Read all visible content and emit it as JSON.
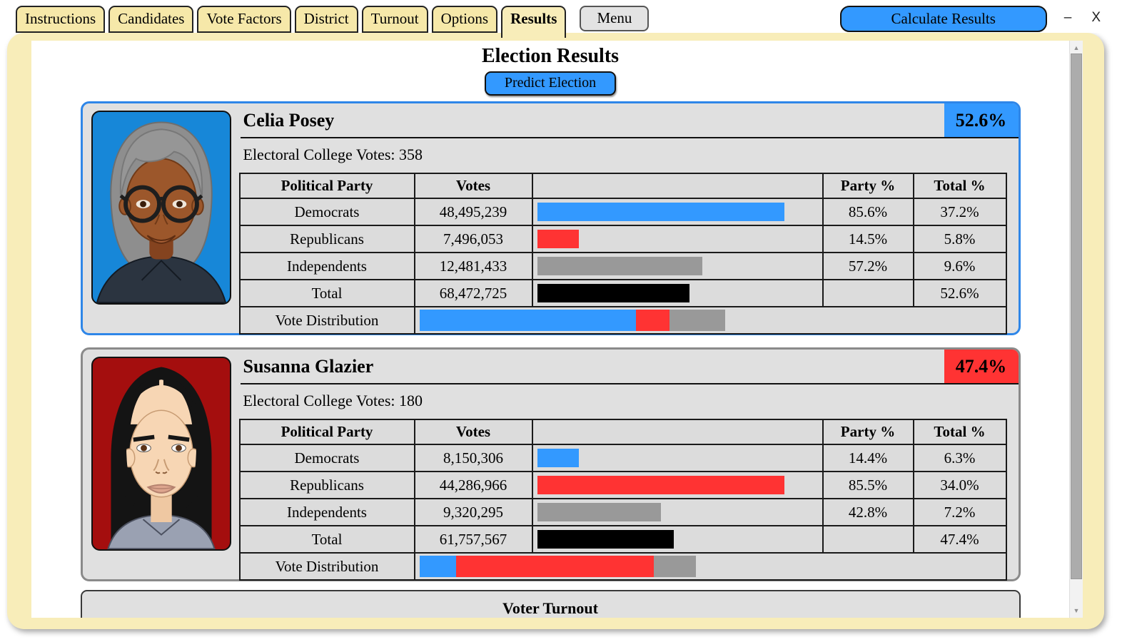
{
  "window": {
    "minimize_icon": "–",
    "close_icon": "X"
  },
  "tabs": [
    {
      "label": "Instructions"
    },
    {
      "label": "Candidates"
    },
    {
      "label": "Vote Factors"
    },
    {
      "label": "District"
    },
    {
      "label": "Turnout"
    },
    {
      "label": "Options"
    },
    {
      "label": "Results"
    }
  ],
  "toolbar": {
    "menu_label": "Menu",
    "calculate_label": "Calculate Results"
  },
  "page": {
    "title": "Election Results",
    "predict_button_label": "Predict Election"
  },
  "table": {
    "headers": {
      "party": "Political Party",
      "votes": "Votes",
      "bar": "",
      "party_pct": "Party %",
      "total_pct": "Total %"
    },
    "distribution_label": "Vote Distribution"
  },
  "colors": {
    "democrat_blue": "#3399FF",
    "republican_red": "#FF3333",
    "independent_gray": "#999999",
    "total_black": "#000000",
    "tab_cream": "#F6E8A9",
    "frame_cream": "#F8EDB9"
  },
  "candidates": [
    {
      "name": "Celia Posey",
      "result_pct": "52.6%",
      "electoral_label": "Electoral College Votes:",
      "electoral_votes": "358",
      "accent": {
        "badge_bg": "#3399FF",
        "card_border": "#2E86E8",
        "avatar_bg": "#1787D8"
      },
      "rows": [
        {
          "party": "Democrats",
          "votes": "48,495,239",
          "party_pct": "85.6%",
          "total_pct": "37.2%",
          "bar": {
            "pct": 85.6,
            "color": "#3399FF"
          }
        },
        {
          "party": "Republicans",
          "votes": "7,496,053",
          "party_pct": "14.5%",
          "total_pct": "5.8%",
          "bar": {
            "pct": 14.5,
            "color": "#FF3333"
          }
        },
        {
          "party": "Independents",
          "votes": "12,481,433",
          "party_pct": "57.2%",
          "total_pct": "9.6%",
          "bar": {
            "pct": 57.2,
            "color": "#999999"
          }
        },
        {
          "party": "Total",
          "votes": "68,472,725",
          "party_pct": "",
          "total_pct": "52.6%",
          "bar": {
            "pct": 52.6,
            "color": "#000000"
          }
        }
      ],
      "distribution": [
        {
          "party": "Democrats",
          "pct": 37.2,
          "color": "#3399FF"
        },
        {
          "party": "Republicans",
          "pct": 5.8,
          "color": "#FF3333"
        },
        {
          "party": "Independents",
          "pct": 9.6,
          "color": "#999999"
        }
      ]
    },
    {
      "name": "Susanna Glazier",
      "result_pct": "47.4%",
      "electoral_label": "Electoral College Votes:",
      "electoral_votes": "180",
      "accent": {
        "badge_bg": "#FF3333",
        "card_border": "#8A8A8A",
        "avatar_bg": "#A40E0E"
      },
      "rows": [
        {
          "party": "Democrats",
          "votes": "8,150,306",
          "party_pct": "14.4%",
          "total_pct": "6.3%",
          "bar": {
            "pct": 14.4,
            "color": "#3399FF"
          }
        },
        {
          "party": "Republicans",
          "votes": "44,286,966",
          "party_pct": "85.5%",
          "total_pct": "34.0%",
          "bar": {
            "pct": 85.5,
            "color": "#FF3333"
          }
        },
        {
          "party": "Independents",
          "votes": "9,320,295",
          "party_pct": "42.8%",
          "total_pct": "7.2%",
          "bar": {
            "pct": 42.8,
            "color": "#999999"
          }
        },
        {
          "party": "Total",
          "votes": "61,757,567",
          "party_pct": "",
          "total_pct": "47.4%",
          "bar": {
            "pct": 47.4,
            "color": "#000000"
          }
        }
      ],
      "distribution": [
        {
          "party": "Democrats",
          "pct": 6.3,
          "color": "#3399FF"
        },
        {
          "party": "Republicans",
          "pct": 34.0,
          "color": "#FF3333"
        },
        {
          "party": "Independents",
          "pct": 7.2,
          "color": "#999999"
        }
      ]
    }
  ],
  "turnout_section": {
    "title": "Voter Turnout"
  }
}
